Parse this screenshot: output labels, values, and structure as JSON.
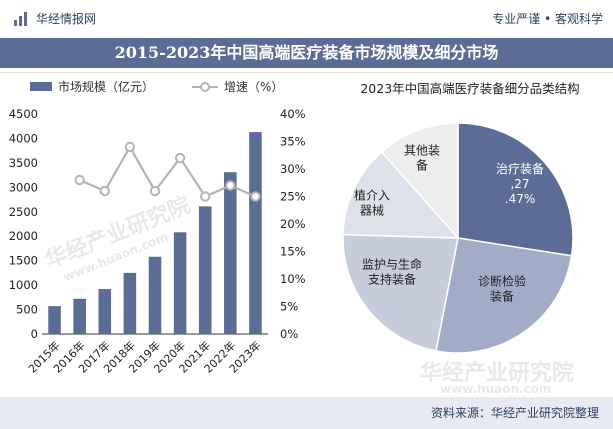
{
  "header": {
    "brand": "华经情报网",
    "slogan": "专业严谨 • 客观科学",
    "main_title": "2015-2023年中国高端医疗装备市场规模及细分市场"
  },
  "colors": {
    "bar": "#5b6d96",
    "line": "#b3b3b3",
    "title_band": "#5b6d96",
    "slices": [
      "#5b6d96",
      "#a3acc6",
      "#c6ccdc",
      "#dde1ea",
      "#ededed"
    ]
  },
  "watermark": {
    "brand": "华经产业研究院",
    "url": "www.huaon.com"
  },
  "chart_data": [
    {
      "type": "bar",
      "categories": [
        "2015年",
        "2016年",
        "2017年",
        "2018年",
        "2019年",
        "2020年",
        "2021年",
        "2022年",
        "2023年"
      ],
      "series": [
        {
          "name": "市场规模（亿元）",
          "type": "bar",
          "axis": "left",
          "values": [
            570,
            720,
            920,
            1250,
            1580,
            2080,
            2610,
            3310,
            4130
          ]
        },
        {
          "name": "增速（%）",
          "type": "line",
          "axis": "right",
          "values": [
            null,
            28,
            26,
            34,
            26,
            32,
            25,
            27,
            25
          ]
        }
      ],
      "ylim": [
        0,
        4500
      ],
      "yticks": [
        "0",
        "500",
        "1000",
        "1500",
        "2000",
        "2500",
        "3000",
        "3500",
        "4000",
        "4500"
      ],
      "y2lim": [
        0,
        40
      ],
      "y2ticks": [
        "0%",
        "5%",
        "10%",
        "15%",
        "20%",
        "25%",
        "30%",
        "35%",
        "40%"
      ],
      "legend_position": "top-left",
      "grid": false
    },
    {
      "type": "pie",
      "title": "2023年中国高端医疗装备细分品类结构",
      "slices": [
        {
          "label": "治疗装备,27.47%",
          "value": 27.47
        },
        {
          "label": "诊断检验装备",
          "value": 25.6
        },
        {
          "label": "监护与生命支持装备",
          "value": 22.4
        },
        {
          "label": "植介入器械",
          "value": 13.0
        },
        {
          "label": "其他装备",
          "value": 11.53
        }
      ]
    }
  ],
  "footer": {
    "source": "资料来源：华经产业研究院整理"
  }
}
